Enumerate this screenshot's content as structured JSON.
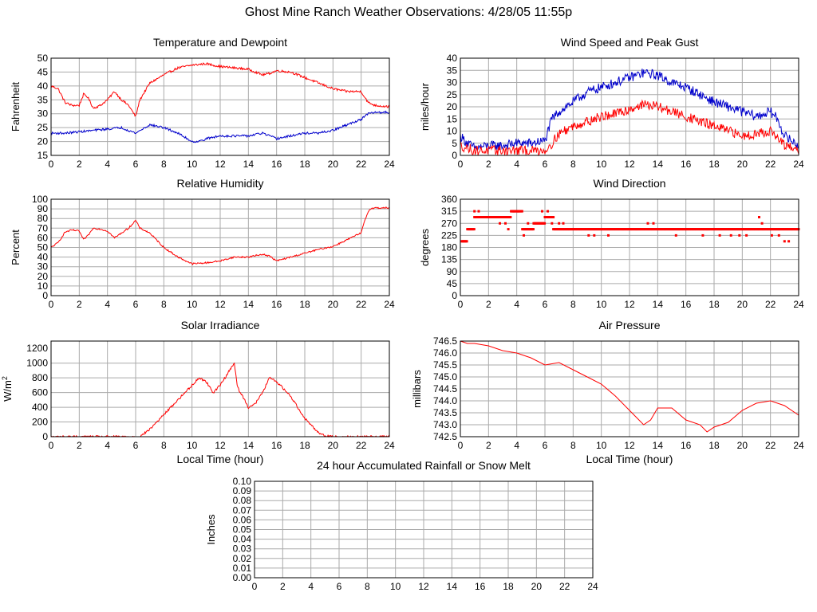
{
  "page": {
    "title": "Ghost Mine Ranch Weather Observations: 4/28/05 11:55p"
  },
  "colors": {
    "series_red": "#ff0000",
    "series_blue": "#0000cc",
    "grid": "#aaaaaa",
    "frame": "#000000",
    "background": "#ffffff"
  },
  "chart_data": [
    {
      "id": "temp",
      "type": "line",
      "title": "Temperature and Dewpoint",
      "xlabel": "",
      "ylabel": "Fahrenheit",
      "xlim": [
        0,
        24
      ],
      "ylim": [
        15,
        50
      ],
      "xticks": [
        0,
        2,
        4,
        6,
        8,
        10,
        12,
        14,
        16,
        18,
        20,
        22,
        24
      ],
      "xtick_labels": [
        "0",
        "2",
        "4",
        "6",
        "8",
        "10",
        "12",
        "14",
        "16",
        "18",
        "20",
        "22",
        "24"
      ],
      "yticks": [
        15,
        20,
        25,
        30,
        35,
        40,
        45,
        50
      ],
      "ytick_labels": [
        "15",
        "20",
        "25",
        "30",
        "35",
        "40",
        "45",
        "50"
      ],
      "grid": true,
      "noise": 0.4,
      "series": [
        {
          "color": "#ff0000",
          "x": [
            0,
            0.5,
            1,
            1.5,
            2,
            2.3,
            2.6,
            3,
            3.5,
            4,
            4.5,
            5,
            5.5,
            6,
            6.3,
            7,
            8,
            9,
            10,
            11,
            12,
            13,
            14,
            15,
            15.5,
            16,
            17,
            18,
            19,
            20,
            21,
            22,
            22.5,
            23,
            24
          ],
          "y": [
            40,
            39,
            34,
            33,
            33,
            37,
            36,
            32,
            33,
            35,
            38,
            35,
            33,
            29,
            35,
            41,
            44,
            46.5,
            47.5,
            48,
            47,
            46.5,
            46,
            44,
            44.5,
            45.5,
            45,
            43,
            41,
            39,
            38,
            38,
            34,
            33,
            32.5
          ]
        },
        {
          "color": "#0000cc",
          "x": [
            0,
            1,
            2,
            3,
            4,
            5,
            6,
            7,
            8,
            9,
            10,
            10.5,
            11,
            12,
            13,
            14,
            15,
            16,
            17,
            18,
            19,
            20,
            21,
            22,
            22.5,
            23,
            24
          ],
          "y": [
            23,
            23,
            23.5,
            24,
            24.5,
            25,
            23,
            26,
            25,
            23,
            20,
            20,
            21,
            22,
            22,
            22,
            23,
            21,
            22,
            23,
            23,
            24,
            26,
            28,
            30,
            30.5,
            30.5
          ]
        }
      ]
    },
    {
      "id": "wind",
      "type": "line",
      "title": "Wind Speed and Peak Gust",
      "xlabel": "",
      "ylabel": "miles/hour",
      "xlim": [
        0,
        24
      ],
      "ylim": [
        0,
        40
      ],
      "xticks": [
        0,
        2,
        4,
        6,
        8,
        10,
        12,
        14,
        16,
        18,
        20,
        22,
        24
      ],
      "xtick_labels": [
        "0",
        "2",
        "4",
        "6",
        "8",
        "10",
        "12",
        "14",
        "16",
        "18",
        "20",
        "22",
        "24"
      ],
      "yticks": [
        0,
        5,
        10,
        15,
        20,
        25,
        30,
        35,
        40
      ],
      "ytick_labels": [
        "0",
        "5",
        "10",
        "15",
        "20",
        "25",
        "30",
        "35",
        "40"
      ],
      "grid": true,
      "noise": 2.0,
      "series": [
        {
          "color": "#0000cc",
          "x": [
            0,
            0.5,
            1,
            2,
            3,
            4,
            5,
            6,
            6.5,
            7,
            8,
            9,
            10,
            11,
            12,
            13,
            14,
            15,
            16,
            17,
            18,
            19,
            20,
            21,
            22,
            22.5,
            23,
            24
          ],
          "y": [
            8,
            5,
            3,
            4,
            4,
            5,
            5,
            6,
            15,
            18,
            22,
            26,
            28,
            30,
            32,
            34,
            33,
            30,
            28,
            25,
            22,
            20,
            18,
            16,
            18,
            15,
            8,
            4
          ]
        },
        {
          "color": "#ff0000",
          "x": [
            0,
            1,
            2,
            3,
            4,
            5,
            6,
            6.5,
            7,
            8,
            9,
            10,
            11,
            12,
            13,
            14,
            15,
            16,
            17,
            18,
            19,
            20,
            21,
            22,
            23,
            24
          ],
          "y": [
            4,
            2,
            2,
            2,
            2,
            2,
            2,
            5,
            9,
            12,
            14,
            16,
            17,
            19,
            21,
            20,
            18,
            16,
            14,
            12,
            10,
            8,
            9,
            10,
            4,
            2
          ]
        }
      ]
    },
    {
      "id": "rh",
      "type": "line",
      "title": "Relative Humidity",
      "xlabel": "",
      "ylabel": "Percent",
      "xlim": [
        0,
        24
      ],
      "ylim": [
        0,
        100
      ],
      "xticks": [
        0,
        2,
        4,
        6,
        8,
        10,
        12,
        14,
        16,
        18,
        20,
        22,
        24
      ],
      "xtick_labels": [
        "0",
        "2",
        "4",
        "6",
        "8",
        "10",
        "12",
        "14",
        "16",
        "18",
        "20",
        "22",
        "24"
      ],
      "yticks": [
        0,
        10,
        20,
        30,
        40,
        50,
        60,
        70,
        80,
        90,
        100
      ],
      "ytick_labels": [
        "0",
        "10",
        "20",
        "30",
        "40",
        "50",
        "60",
        "70",
        "80",
        "90",
        "100"
      ],
      "grid": true,
      "noise": 0.8,
      "series": [
        {
          "color": "#ff0000",
          "x": [
            0,
            0.5,
            1,
            1.5,
            2,
            2.3,
            2.6,
            3,
            3.5,
            4,
            4.5,
            5,
            5.5,
            6,
            6.3,
            7,
            8,
            9,
            10,
            11,
            12,
            13,
            14,
            15,
            15.5,
            16,
            17,
            18,
            19,
            20,
            21,
            22,
            22.3,
            22.6,
            23,
            24
          ],
          "y": [
            50,
            55,
            66,
            68,
            67,
            58,
            62,
            70,
            69,
            67,
            60,
            65,
            70,
            78,
            70,
            65,
            50,
            40,
            33,
            34,
            36,
            40,
            40,
            43,
            41,
            36,
            40,
            44,
            48,
            51,
            58,
            65,
            80,
            90,
            91,
            91
          ]
        }
      ]
    },
    {
      "id": "wdir",
      "type": "scatter",
      "title": "Wind Direction",
      "xlabel": "",
      "ylabel": "degrees",
      "xlim": [
        0,
        24
      ],
      "ylim": [
        0,
        360
      ],
      "xticks": [
        0,
        2,
        4,
        6,
        8,
        10,
        12,
        14,
        16,
        18,
        20,
        22,
        24
      ],
      "xtick_labels": [
        "0",
        "2",
        "4",
        "6",
        "8",
        "10",
        "12",
        "14",
        "16",
        "18",
        "20",
        "22",
        "24"
      ],
      "yticks": [
        0,
        45,
        90,
        135,
        180,
        225,
        270,
        315,
        360
      ],
      "ytick_labels": [
        "0",
        "45",
        "90",
        "135",
        "180",
        "225",
        "270",
        "315",
        "360"
      ],
      "grid": true,
      "segments": [
        {
          "x0": 0.1,
          "x1": 0.5,
          "y": 203
        },
        {
          "x0": 0.5,
          "x1": 1.0,
          "y": 248
        },
        {
          "x0": 1.0,
          "x1": 2.0,
          "y": 293
        },
        {
          "x0": 2.0,
          "x1": 2.6,
          "y": 293
        },
        {
          "x0": 2.6,
          "x1": 3.6,
          "y": 293
        },
        {
          "x0": 3.6,
          "x1": 4.4,
          "y": 315
        },
        {
          "x0": 4.4,
          "x1": 5.2,
          "y": 248
        },
        {
          "x0": 5.2,
          "x1": 6.0,
          "y": 270
        },
        {
          "x0": 6.0,
          "x1": 6.6,
          "y": 293
        },
        {
          "x0": 6.6,
          "x1": 24.0,
          "y": 248
        }
      ],
      "points": [
        {
          "x": 1.0,
          "y": 315
        },
        {
          "x": 1.3,
          "y": 315
        },
        {
          "x": 2.8,
          "y": 270
        },
        {
          "x": 3.2,
          "y": 270
        },
        {
          "x": 3.4,
          "y": 248
        },
        {
          "x": 3.8,
          "y": 315
        },
        {
          "x": 4.1,
          "y": 315
        },
        {
          "x": 4.5,
          "y": 225
        },
        {
          "x": 4.8,
          "y": 270
        },
        {
          "x": 5.8,
          "y": 315
        },
        {
          "x": 6.2,
          "y": 315
        },
        {
          "x": 6.5,
          "y": 270
        },
        {
          "x": 7.0,
          "y": 270
        },
        {
          "x": 7.3,
          "y": 270
        },
        {
          "x": 9.1,
          "y": 225
        },
        {
          "x": 9.5,
          "y": 225
        },
        {
          "x": 10.5,
          "y": 225
        },
        {
          "x": 13.3,
          "y": 270
        },
        {
          "x": 13.7,
          "y": 270
        },
        {
          "x": 15.3,
          "y": 225
        },
        {
          "x": 17.2,
          "y": 225
        },
        {
          "x": 18.4,
          "y": 225
        },
        {
          "x": 19.2,
          "y": 225
        },
        {
          "x": 19.8,
          "y": 225
        },
        {
          "x": 20.3,
          "y": 225
        },
        {
          "x": 21.2,
          "y": 293
        },
        {
          "x": 21.4,
          "y": 270
        },
        {
          "x": 22.1,
          "y": 225
        },
        {
          "x": 22.6,
          "y": 225
        },
        {
          "x": 23.0,
          "y": 203
        },
        {
          "x": 23.3,
          "y": 203
        }
      ]
    },
    {
      "id": "solar",
      "type": "line",
      "title": "Solar Irradiance",
      "xlabel": "Local Time (hour)",
      "ylabel": "W/m",
      "ylabel_sup": "2",
      "xlim": [
        0,
        24
      ],
      "ylim": [
        0,
        1300
      ],
      "xticks": [
        0,
        2,
        4,
        6,
        8,
        10,
        12,
        14,
        16,
        18,
        20,
        22,
        24
      ],
      "xtick_labels": [
        "0",
        "2",
        "4",
        "6",
        "8",
        "10",
        "12",
        "14",
        "16",
        "18",
        "20",
        "22",
        "24"
      ],
      "yticks": [
        0,
        200,
        400,
        600,
        800,
        1000,
        1200
      ],
      "ytick_labels": [
        "0",
        "200",
        "400",
        "600",
        "800",
        "1000",
        "1200"
      ],
      "grid": true,
      "noise": 15,
      "series": [
        {
          "color": "#ff0000",
          "x": [
            0,
            6.3,
            7,
            8,
            9,
            10,
            10.5,
            11,
            11.5,
            12,
            12.5,
            12.8,
            13,
            13.2,
            13.4,
            13.6,
            14,
            14.5,
            15,
            15.5,
            16,
            17,
            18,
            19,
            19.5,
            20,
            24
          ],
          "y": [
            0,
            0,
            100,
            300,
            500,
            700,
            800,
            750,
            600,
            700,
            850,
            950,
            1000,
            700,
            600,
            550,
            400,
            450,
            600,
            800,
            750,
            550,
            250,
            50,
            10,
            0,
            0
          ]
        }
      ]
    },
    {
      "id": "pressure",
      "type": "line",
      "title": "Air Pressure",
      "xlabel": "Local Time (hour)",
      "ylabel": "millibars",
      "xlim": [
        0,
        24
      ],
      "ylim": [
        742.5,
        746.5
      ],
      "xticks": [
        0,
        2,
        4,
        6,
        8,
        10,
        12,
        14,
        16,
        18,
        20,
        22,
        24
      ],
      "xtick_labels": [
        "0",
        "2",
        "4",
        "6",
        "8",
        "10",
        "12",
        "14",
        "16",
        "18",
        "20",
        "22",
        "24"
      ],
      "yticks": [
        742.5,
        743.0,
        743.5,
        744.0,
        744.5,
        745.0,
        745.5,
        746.0,
        746.5
      ],
      "ytick_labels": [
        "742.5",
        "743.0",
        "743.5",
        "744.0",
        "744.5",
        "745.0",
        "745.5",
        "746.0",
        "746.5"
      ],
      "grid": true,
      "noise": 0,
      "series": [
        {
          "color": "#ff0000",
          "x": [
            0,
            0.5,
            1,
            2,
            3,
            4,
            5,
            6,
            7,
            8,
            9,
            10,
            11,
            12,
            13,
            13.5,
            14,
            15,
            16,
            17,
            17.5,
            18,
            19,
            20,
            21,
            22,
            23,
            24
          ],
          "y": [
            746.5,
            746.4,
            746.4,
            746.3,
            746.1,
            746.0,
            745.8,
            745.5,
            745.6,
            745.3,
            745.0,
            744.7,
            744.2,
            743.6,
            743.0,
            743.2,
            743.7,
            743.7,
            743.2,
            743.0,
            742.7,
            742.9,
            743.1,
            743.6,
            743.9,
            744.0,
            743.8,
            743.4
          ]
        }
      ]
    },
    {
      "id": "rain",
      "type": "line",
      "title": "24 hour Accumulated Rainfall or Snow Melt",
      "xlabel": "",
      "ylabel": "Inches",
      "xlim": [
        0,
        24
      ],
      "ylim": [
        0,
        0.1
      ],
      "xticks": [
        0,
        2,
        4,
        6,
        8,
        10,
        12,
        14,
        16,
        18,
        20,
        22,
        24
      ],
      "xtick_labels": [
        "0",
        "2",
        "4",
        "6",
        "8",
        "10",
        "12",
        "14",
        "16",
        "18",
        "20",
        "22",
        "24"
      ],
      "yticks": [
        0,
        0.01,
        0.02,
        0.03,
        0.04,
        0.05,
        0.06,
        0.07,
        0.08,
        0.09,
        0.1
      ],
      "ytick_labels": [
        "0.00",
        "0.01",
        "0.02",
        "0.03",
        "0.04",
        "0.05",
        "0.06",
        "0.07",
        "0.08",
        "0.09",
        "0.10"
      ],
      "grid": true,
      "noise": 0,
      "series": [
        {
          "color": "#ff0000",
          "x": [
            0,
            24
          ],
          "y": [
            0,
            0
          ]
        }
      ]
    }
  ]
}
